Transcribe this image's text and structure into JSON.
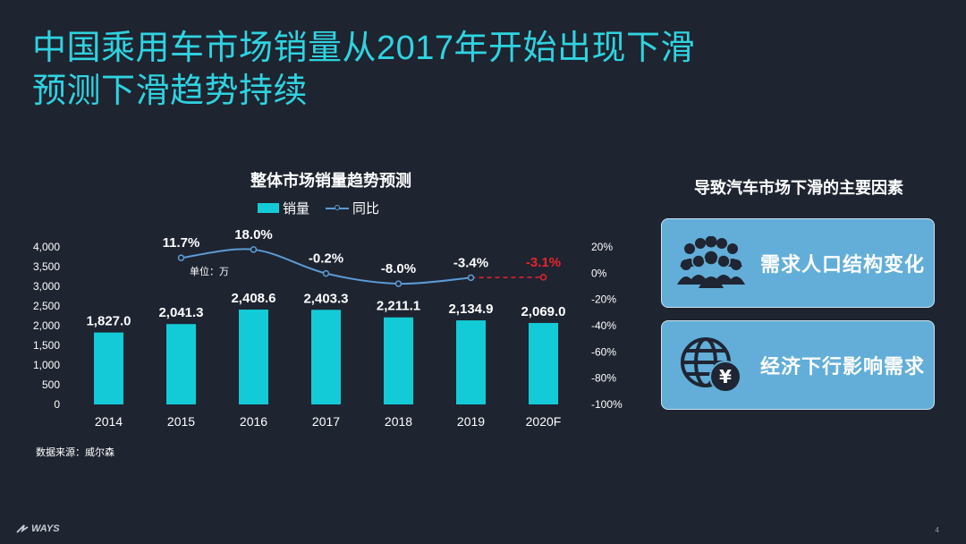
{
  "slide": {
    "title_line1": "中国乘用车市场销量从2017年开始出现下滑",
    "title_line2": "预测下滑趋势持续",
    "unit": "单位：万",
    "source": "数据来源：威尔森",
    "page_number": "4",
    "logo_text": "WAYS"
  },
  "chart_data": {
    "type": "bar",
    "title": "整体市场销量趋势预测",
    "categories": [
      "2014",
      "2015",
      "2016",
      "2017",
      "2018",
      "2019",
      "2020F"
    ],
    "series": [
      {
        "name": "销量",
        "type": "bar",
        "values": [
          1827.0,
          2041.3,
          2408.6,
          2403.3,
          2211.1,
          2134.9,
          2069.0
        ],
        "labels": [
          "1,827.0",
          "2,041.3",
          "2,408.6",
          "2,403.3",
          "2,211.1",
          "2,134.9",
          "2,069.0"
        ],
        "color": "#13cbd6"
      },
      {
        "name": "同比",
        "type": "line",
        "x": [
          "2015",
          "2016",
          "2017",
          "2018",
          "2019",
          "2020F"
        ],
        "values": [
          11.7,
          18.0,
          -0.2,
          -8.0,
          -3.4,
          -3.1
        ],
        "labels": [
          "11.7%",
          "18.0%",
          "-0.2%",
          "-8.0%",
          "-3.4%",
          "-3.1%"
        ],
        "color": "#5b9bd5",
        "forecast_color": "#e8232a"
      }
    ],
    "y_left": {
      "ylim": [
        0,
        4000
      ],
      "ticks": [
        "0",
        "500",
        "1,000",
        "1,500",
        "2,000",
        "2,500",
        "3,000",
        "3,500",
        "4,000"
      ]
    },
    "y_right": {
      "ylim": [
        -100,
        20
      ],
      "ticks": [
        "-100%",
        "-80%",
        "-60%",
        "-40%",
        "-20%",
        "0%",
        "20%"
      ]
    },
    "legend_position": "top",
    "grid": false
  },
  "factors": {
    "title": "导致汽车市场下滑的主要因素",
    "items": [
      {
        "label": "需求人口结构变化",
        "icon": "people-group-icon"
      },
      {
        "label": "经济下行影响需求",
        "icon": "globe-yen-icon"
      }
    ]
  }
}
